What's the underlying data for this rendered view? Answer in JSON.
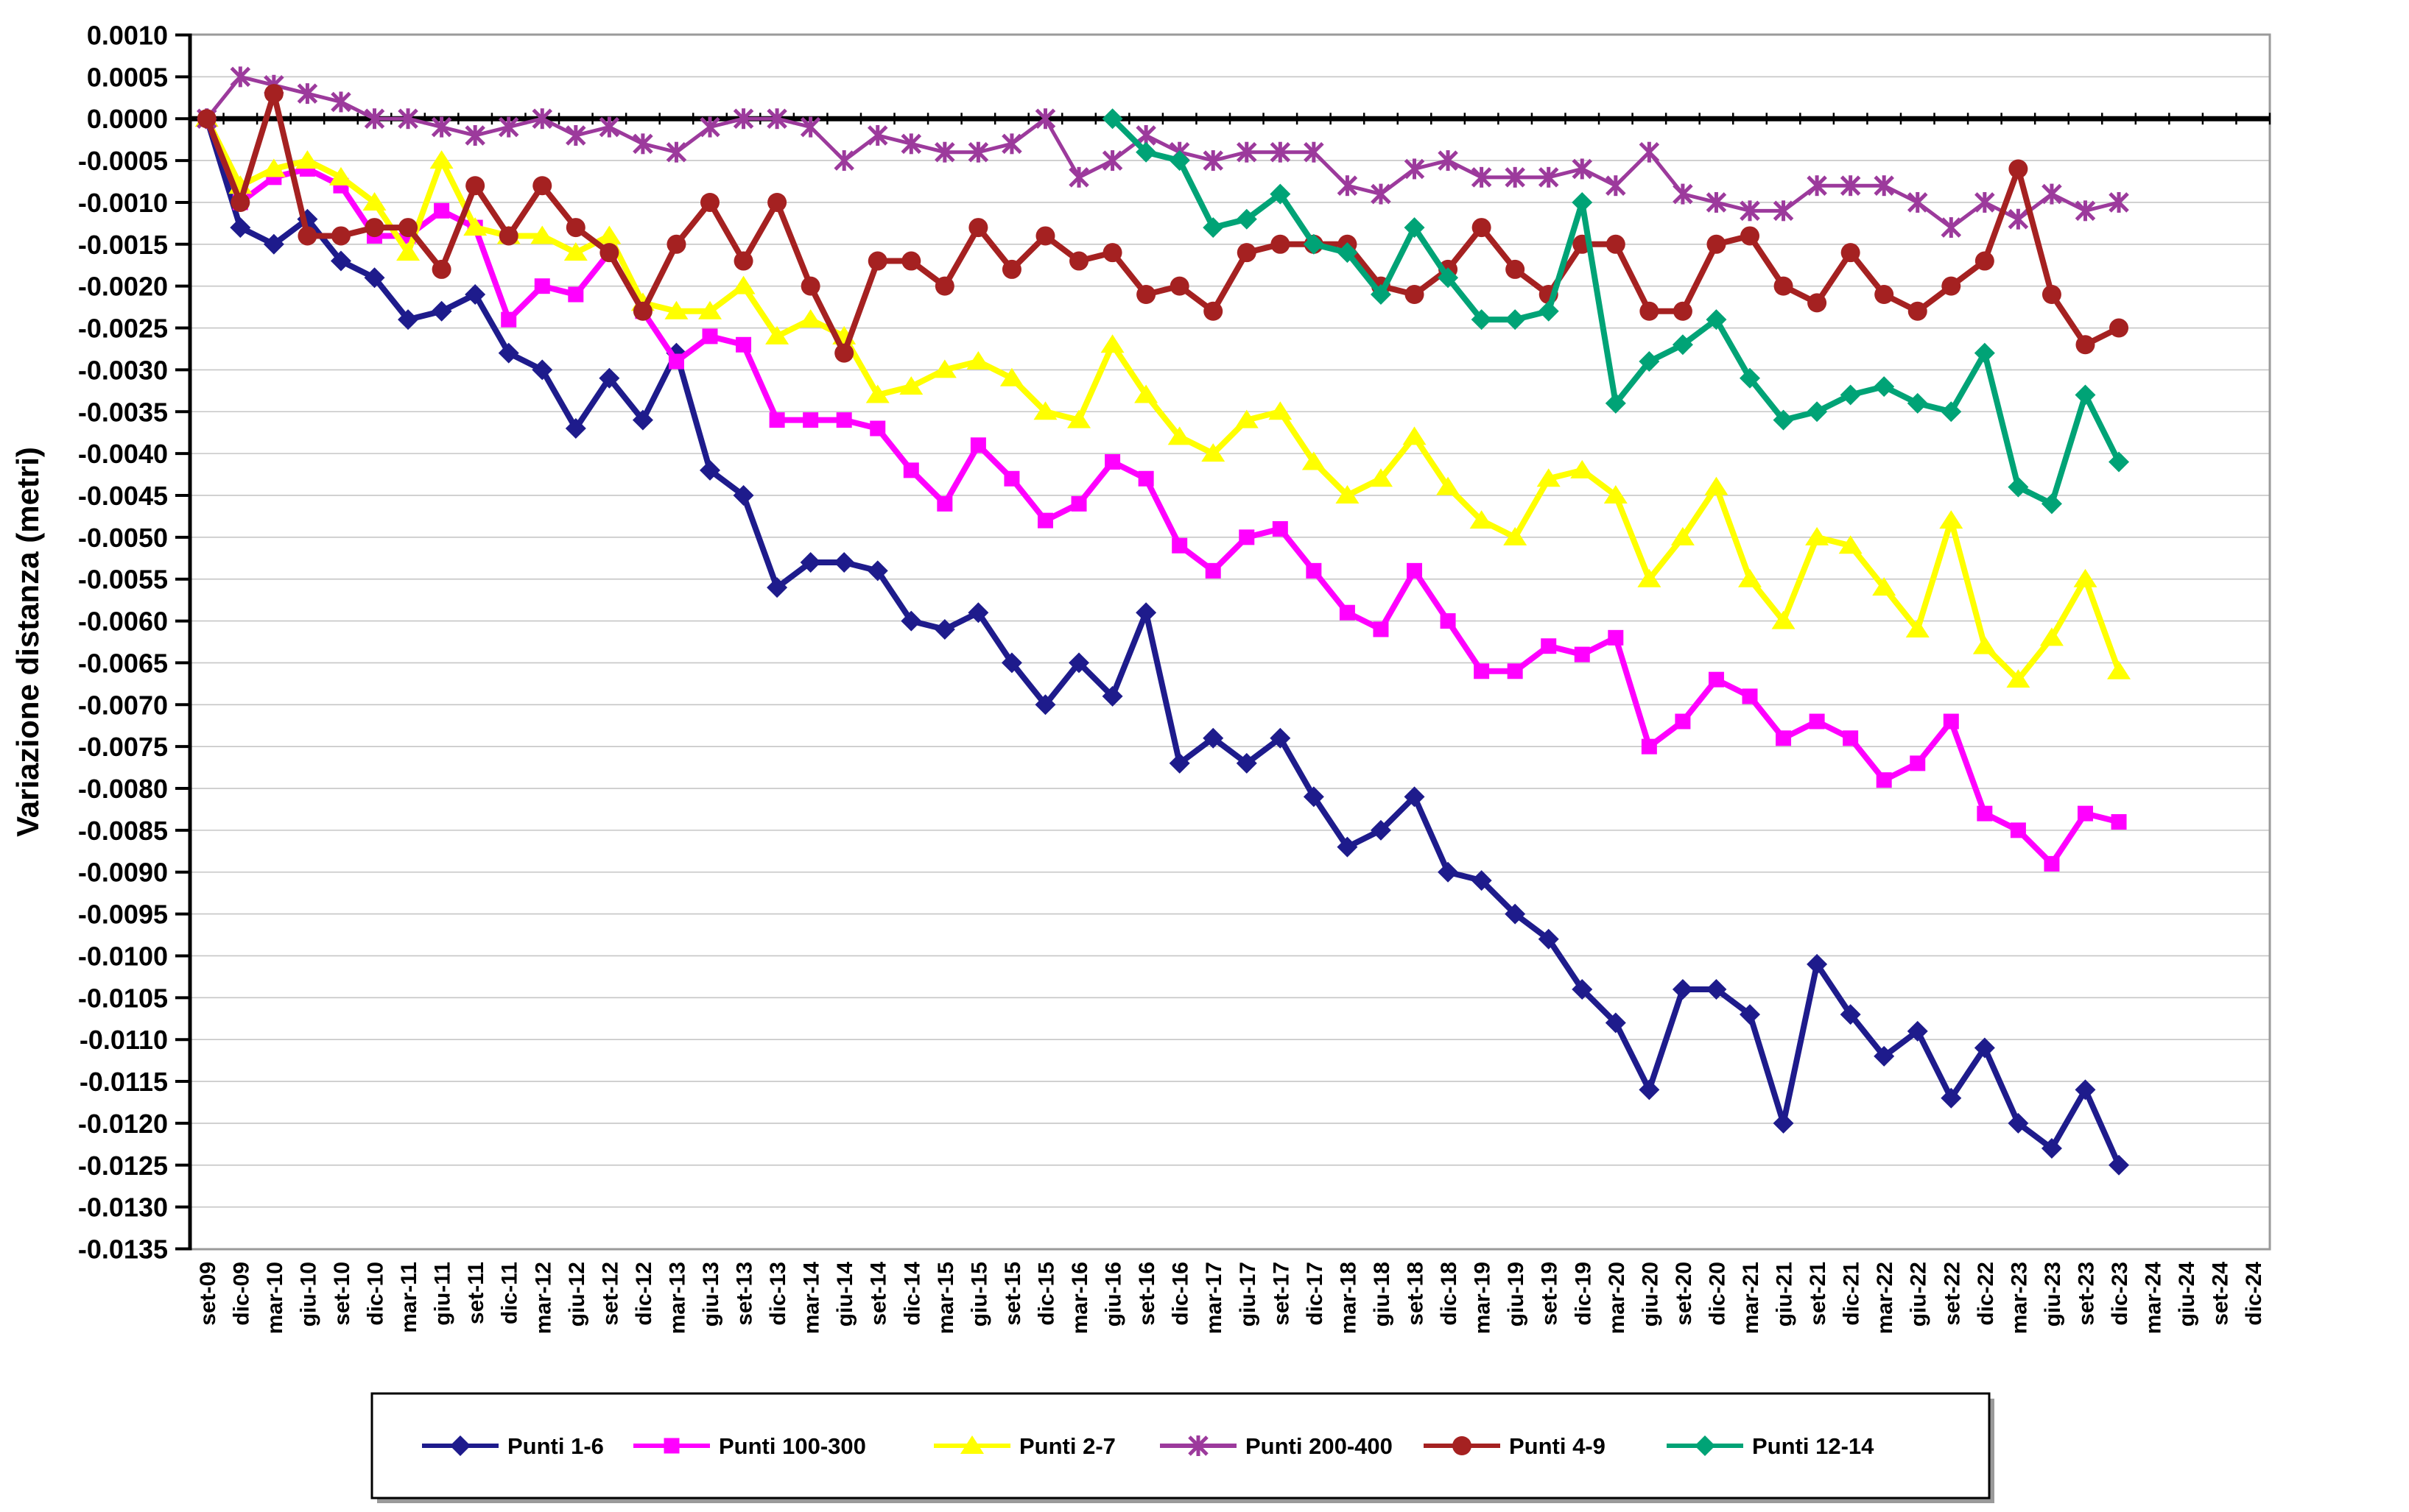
{
  "chart_data": {
    "type": "line",
    "title": "",
    "xlabel": "",
    "ylabel": "Variazione distanza (metri)",
    "ylim": [
      -0.0135,
      0.001
    ],
    "ytick_step": 0.0005,
    "grid": "horizontal",
    "legend_position": "bottom",
    "zero_line": 0.0,
    "categories": [
      "set-09",
      "dic-09",
      "mar-10",
      "giu-10",
      "set-10",
      "dic-10",
      "mar-11",
      "giu-11",
      "set-11",
      "dic-11",
      "mar-12",
      "giu-12",
      "set-12",
      "dic-12",
      "mar-13",
      "giu-13",
      "set-13",
      "dic-13",
      "mar-14",
      "giu-14",
      "set-14",
      "dic-14",
      "mar-15",
      "giu-15",
      "set-15",
      "dic-15",
      "mar-16",
      "giu-16",
      "set-16",
      "dic-16",
      "mar-17",
      "giu-17",
      "set-17",
      "dic-17",
      "mar-18",
      "giu-18",
      "set-18",
      "dic-18",
      "mar-19",
      "giu-19",
      "set-19",
      "dic-19",
      "mar-20",
      "giu-20",
      "set-20",
      "dic-20",
      "mar-21",
      "giu-21",
      "set-21",
      "dic-21",
      "mar-22",
      "giu-22",
      "set-22",
      "dic-22",
      "mar-23",
      "giu-23",
      "set-23",
      "dic-23",
      "mar-24",
      "giu-24",
      "set-24",
      "dic-24"
    ],
    "series": [
      {
        "name": "Punti 1-6",
        "color": "#1E1B8C",
        "marker": "diamond",
        "start_index": 0,
        "values": [
          0.0,
          -0.0013,
          -0.0015,
          -0.0012,
          -0.0017,
          -0.0019,
          -0.0024,
          -0.0023,
          -0.0021,
          -0.0028,
          -0.003,
          -0.0037,
          -0.0031,
          -0.0036,
          -0.0028,
          -0.0042,
          -0.0045,
          -0.0056,
          -0.0053,
          -0.0053,
          -0.0054,
          -0.006,
          -0.0061,
          -0.0059,
          -0.0065,
          -0.007,
          -0.0065,
          -0.0069,
          -0.0059,
          -0.0077,
          -0.0074,
          -0.0077,
          -0.0074,
          -0.0081,
          -0.0087,
          -0.0085,
          -0.0081,
          -0.009,
          -0.0091,
          -0.0095,
          -0.0098,
          -0.0104,
          -0.0108,
          -0.0116,
          -0.0104,
          -0.0104,
          -0.0107,
          -0.012,
          -0.0101,
          -0.0107,
          -0.0112,
          -0.0109,
          -0.0117,
          -0.0111,
          -0.012,
          -0.0123,
          -0.0116,
          -0.0125
        ]
      },
      {
        "name": "Punti 100-300",
        "color": "#FF00FF",
        "marker": "square",
        "start_index": 0,
        "values": [
          0.0,
          -0.001,
          -0.0007,
          -0.0006,
          -0.0008,
          -0.0014,
          -0.0014,
          -0.0011,
          -0.0013,
          -0.0024,
          -0.002,
          -0.0021,
          -0.0016,
          -0.0023,
          -0.0029,
          -0.0026,
          -0.0027,
          -0.0036,
          -0.0036,
          -0.0036,
          -0.0037,
          -0.0042,
          -0.0046,
          -0.0039,
          -0.0043,
          -0.0048,
          -0.0046,
          -0.0041,
          -0.0043,
          -0.0051,
          -0.0054,
          -0.005,
          -0.0049,
          -0.0054,
          -0.0059,
          -0.0061,
          -0.0054,
          -0.006,
          -0.0066,
          -0.0066,
          -0.0063,
          -0.0064,
          -0.0062,
          -0.0075,
          -0.0072,
          -0.0067,
          -0.0069,
          -0.0074,
          -0.0072,
          -0.0074,
          -0.0079,
          -0.0077,
          -0.0072,
          -0.0083,
          -0.0085,
          -0.0089,
          -0.0083,
          -0.0084
        ]
      },
      {
        "name": "Punti 2-7",
        "color": "#FFFF00",
        "marker": "triangle",
        "start_index": 0,
        "values": [
          0.0,
          -0.0008,
          -0.0006,
          -0.0005,
          -0.0007,
          -0.001,
          -0.0016,
          -0.0005,
          -0.0013,
          -0.0014,
          -0.0014,
          -0.0016,
          -0.0014,
          -0.0022,
          -0.0023,
          -0.0023,
          -0.002,
          -0.0026,
          -0.0024,
          -0.0026,
          -0.0033,
          -0.0032,
          -0.003,
          -0.0029,
          -0.0031,
          -0.0035,
          -0.0036,
          -0.0027,
          -0.0033,
          -0.0038,
          -0.004,
          -0.0036,
          -0.0035,
          -0.0041,
          -0.0045,
          -0.0043,
          -0.0038,
          -0.0044,
          -0.0048,
          -0.005,
          -0.0043,
          -0.0042,
          -0.0045,
          -0.0055,
          -0.005,
          -0.0044,
          -0.0055,
          -0.006,
          -0.005,
          -0.0051,
          -0.0056,
          -0.0061,
          -0.0048,
          -0.0063,
          -0.0067,
          -0.0062,
          -0.0055,
          -0.0066
        ]
      },
      {
        "name": "Punti 200-400",
        "color": "#9C3A9C",
        "marker": "star",
        "start_index": 0,
        "values": [
          0.0,
          0.0005,
          0.0004,
          0.0003,
          0.0002,
          0.0,
          0.0,
          -0.0001,
          -0.0002,
          -0.0001,
          0.0,
          -0.0002,
          -0.0001,
          -0.0003,
          -0.0004,
          -0.0001,
          0.0,
          0.0,
          -0.0001,
          -0.0005,
          -0.0002,
          -0.0003,
          -0.0004,
          -0.0004,
          -0.0003,
          0.0,
          -0.0007,
          -0.0005,
          -0.0002,
          -0.0004,
          -0.0005,
          -0.0004,
          -0.0004,
          -0.0004,
          -0.0008,
          -0.0009,
          -0.0006,
          -0.0005,
          -0.0007,
          -0.0007,
          -0.0007,
          -0.0006,
          -0.0008,
          -0.0004,
          -0.0009,
          -0.001,
          -0.0011,
          -0.0011,
          -0.0008,
          -0.0008,
          -0.0008,
          -0.001,
          -0.0013,
          -0.001,
          -0.0012,
          -0.0009,
          -0.0011,
          -0.001
        ]
      },
      {
        "name": "Punti 4-9",
        "color": "#A52121",
        "marker": "circle",
        "start_index": 0,
        "values": [
          0.0,
          -0.001,
          0.0003,
          -0.0014,
          -0.0014,
          -0.0013,
          -0.0013,
          -0.0018,
          -0.0008,
          -0.0014,
          -0.0008,
          -0.0013,
          -0.0016,
          -0.0023,
          -0.0015,
          -0.001,
          -0.0017,
          -0.001,
          -0.002,
          -0.0028,
          -0.0017,
          -0.0017,
          -0.002,
          -0.0013,
          -0.0018,
          -0.0014,
          -0.0017,
          -0.0016,
          -0.0021,
          -0.002,
          -0.0023,
          -0.0016,
          -0.0015,
          -0.0015,
          -0.0015,
          -0.002,
          -0.0021,
          -0.0018,
          -0.0013,
          -0.0018,
          -0.0021,
          -0.0015,
          -0.0015,
          -0.0023,
          -0.0023,
          -0.0015,
          -0.0014,
          -0.002,
          -0.0022,
          -0.0016,
          -0.0021,
          -0.0023,
          -0.002,
          -0.0017,
          -0.0006,
          -0.0021,
          -0.0027,
          -0.0025
        ]
      },
      {
        "name": "Punti 12-14",
        "color": "#00A376",
        "marker": "diamond",
        "start_index": 27,
        "values": [
          0.0,
          -0.0004,
          -0.0005,
          -0.0013,
          -0.0012,
          -0.0009,
          -0.0015,
          -0.0016,
          -0.0021,
          -0.0013,
          -0.0019,
          -0.0024,
          -0.0024,
          -0.0023,
          -0.001,
          -0.0034,
          -0.0029,
          -0.0027,
          -0.0024,
          -0.0031,
          -0.0036,
          -0.0035,
          -0.0033,
          -0.0032,
          -0.0034,
          -0.0035,
          -0.0028,
          -0.0044,
          -0.0046,
          -0.0033,
          -0.0041
        ]
      }
    ]
  }
}
